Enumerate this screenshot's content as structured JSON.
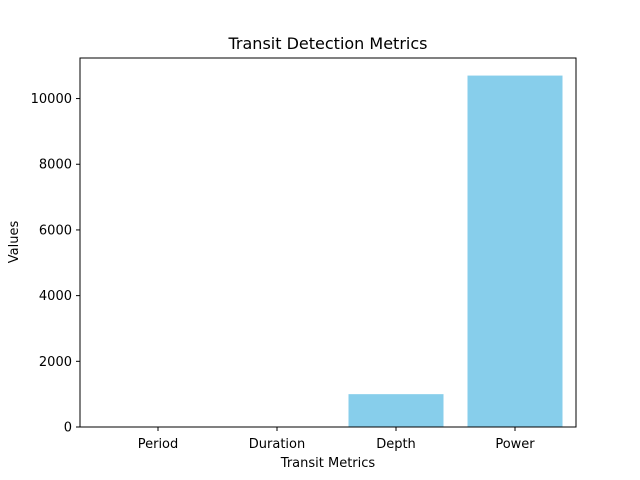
{
  "chart_data": {
    "type": "bar",
    "title": "Transit Detection Metrics",
    "xlabel": "Transit Metrics",
    "ylabel": "Values",
    "categories": [
      "Period",
      "Duration",
      "Depth",
      "Power"
    ],
    "values": [
      3.5,
      2.5,
      1000,
      10700
    ],
    "ylim": [
      0,
      11235
    ],
    "yticks": [
      0,
      2000,
      4000,
      6000,
      8000,
      10000
    ],
    "bar_color": "#87ceeb",
    "grid": false,
    "legend": "none"
  }
}
